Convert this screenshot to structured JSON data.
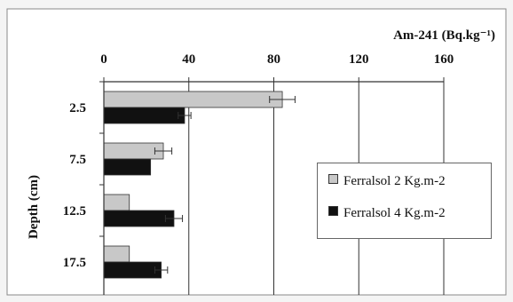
{
  "chart_data": {
    "type": "bar",
    "orientation": "horizontal",
    "title": "",
    "xlabel": "Am-241 (Bq.kg⁻¹)",
    "ylabel": "Depth (cm)",
    "xlim": [
      0,
      160
    ],
    "xticks": [
      "0",
      "40",
      "80",
      "120",
      "160"
    ],
    "x_axis_position": "top",
    "categories": [
      "2.5",
      "7.5",
      "12.5",
      "17.5"
    ],
    "series": [
      {
        "name": "Ferralsol 2 Kg.m-2",
        "color": "#c8c8c8",
        "values": [
          84,
          28,
          12,
          12
        ],
        "errors": [
          6,
          4,
          0,
          0
        ]
      },
      {
        "name": "Ferralsol 4 Kg.m-2",
        "color": "#111111",
        "values": [
          38,
          22,
          33,
          27
        ],
        "errors": [
          3,
          0,
          4,
          3
        ]
      }
    ],
    "grid": "vertical",
    "legend_position": "right"
  }
}
